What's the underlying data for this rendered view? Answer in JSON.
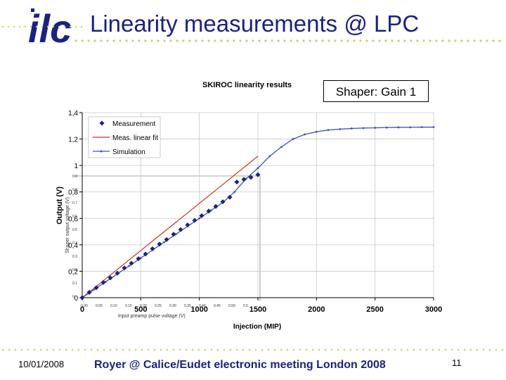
{
  "slide": {
    "title": "Linearity measurements @ LPC",
    "logo_text": "ilc",
    "callout": "Shaper: Gain 1",
    "footer_date": "10/01/2008",
    "footer_text": "Royer @ Calice/Eudet electronic meeting London 2008",
    "page_number": "11"
  },
  "colors": {
    "title": "#1a237e",
    "dots": "#c8d26e",
    "measurement": "#1a237e",
    "fit": "#c0392b",
    "simulation": "#3f51b5"
  },
  "chart_data": {
    "type": "scatter",
    "title": "SKIROC linearity results",
    "xlabel": "Injection (MIP)",
    "ylabel": "Output (V)",
    "xlim": [
      0,
      3000
    ],
    "ylim": [
      0,
      1.4
    ],
    "x_ticks": [
      0,
      500,
      1000,
      1500,
      2000,
      2500,
      3000
    ],
    "y_ticks": [
      0,
      0.2,
      0.4,
      0.6,
      0.8,
      1,
      1.2,
      1.4
    ],
    "y_tick_labels": [
      "0",
      "0,2",
      "0,4",
      "0,6",
      "0,8",
      "1",
      "1,2",
      "1,4"
    ],
    "legend_position": "top-left",
    "series": [
      {
        "name": "Measurement",
        "kind": "markers",
        "x": [
          0,
          60,
          120,
          180,
          240,
          300,
          360,
          420,
          480,
          540,
          600,
          660,
          720,
          780,
          840,
          900,
          960,
          1020,
          1080,
          1140,
          1200,
          1260,
          1320,
          1380,
          1440,
          1500
        ],
        "y": [
          0.0,
          0.04,
          0.075,
          0.115,
          0.15,
          0.185,
          0.225,
          0.26,
          0.295,
          0.33,
          0.37,
          0.405,
          0.44,
          0.48,
          0.515,
          0.55,
          0.585,
          0.62,
          0.655,
          0.69,
          0.725,
          0.76,
          0.875,
          0.895,
          0.91,
          0.93
        ]
      },
      {
        "name": "Meas. linear fit",
        "kind": "line",
        "x": [
          0,
          1500
        ],
        "y": [
          0.0,
          1.07
        ]
      },
      {
        "name": "Simulation",
        "kind": "line-markers",
        "x": [
          0,
          100,
          200,
          300,
          400,
          500,
          600,
          700,
          800,
          900,
          1000,
          1100,
          1200,
          1300,
          1400,
          1500,
          1600,
          1700,
          1800,
          1900,
          2000,
          2100,
          2200,
          2300,
          2400,
          2500,
          2600,
          2700,
          2800,
          2900,
          3000
        ],
        "y": [
          0.0,
          0.06,
          0.12,
          0.18,
          0.24,
          0.3,
          0.36,
          0.42,
          0.48,
          0.54,
          0.6,
          0.66,
          0.72,
          0.8,
          0.9,
          0.98,
          1.07,
          1.14,
          1.2,
          1.235,
          1.255,
          1.268,
          1.275,
          1.28,
          1.283,
          1.285,
          1.287,
          1.288,
          1.289,
          1.29,
          1.29
        ]
      }
    ],
    "inset_axes": {
      "xlabel": "Input preamp pulse voltage (V)",
      "ylabel": "Shaper output voltage (V)",
      "x_ticks": [
        "0.00",
        "0.05",
        "0.10",
        "0.15",
        "0.20",
        "0.25",
        "0.30",
        "0.35",
        "0.40",
        "0.45",
        "0.50",
        "0.5"
      ],
      "y_ticks": [
        "0",
        "0.1",
        "0.2",
        "0.3",
        "0.4",
        "0.5",
        "0.6",
        "0.7",
        "0.8",
        "0.9"
      ]
    }
  }
}
